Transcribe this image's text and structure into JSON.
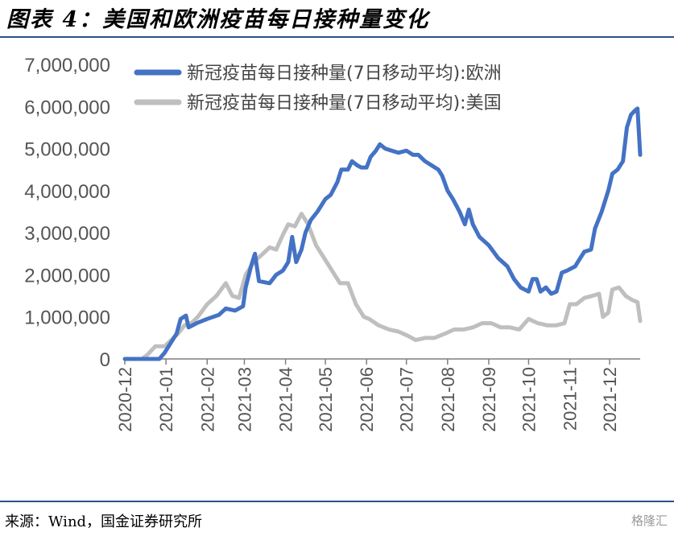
{
  "figure": {
    "title": "图表 4：美国和欧洲疫苗每日接种量变化",
    "source": "来源：Wind，国金证券研究所",
    "watermark": "格隆汇"
  },
  "chart_data": {
    "type": "line",
    "title": "",
    "xlabel": "",
    "ylabel": "",
    "ylim": [
      0,
      7000000
    ],
    "yticks": [
      0,
      1000000,
      2000000,
      3000000,
      4000000,
      5000000,
      6000000,
      7000000
    ],
    "ytick_labels": [
      "0",
      "1,000,000",
      "2,000,000",
      "3,000,000",
      "4,000,000",
      "5,000,000",
      "6,000,000",
      "7,000,000"
    ],
    "xticks": [
      "2020-12-01",
      "2021-01-01",
      "2021-02-01",
      "2021-03-01",
      "2021-04-01",
      "2021-05-01",
      "2021-06-01",
      "2021-07-01",
      "2021-08-01",
      "2021-09-01",
      "2021-10-01",
      "2021-11-01",
      "2021-12-01"
    ],
    "xtick_labels": [
      "2020-12",
      "2021-01",
      "2021-02",
      "2021-03",
      "2021-04",
      "2021-05",
      "2021-06",
      "2021-07",
      "2021-08",
      "2021-09",
      "2021-10",
      "2021-11",
      "2021-12"
    ],
    "xlim": [
      "2020-12-01",
      "2021-12-24"
    ],
    "grid": false,
    "legend_position": "top-left",
    "series": [
      {
        "name": "新冠疫苗每日接种量(7日移动平均):欧洲",
        "color": "#4472c4",
        "points": [
          [
            "2020-12-01",
            0
          ],
          [
            "2020-12-27",
            0
          ],
          [
            "2020-12-31",
            150000
          ],
          [
            "2021-01-05",
            400000
          ],
          [
            "2021-01-09",
            600000
          ],
          [
            "2021-01-12",
            950000
          ],
          [
            "2021-01-16",
            1030000
          ],
          [
            "2021-01-18",
            750000
          ],
          [
            "2021-01-24",
            850000
          ],
          [
            "2021-02-01",
            950000
          ],
          [
            "2021-02-10",
            1050000
          ],
          [
            "2021-02-15",
            1200000
          ],
          [
            "2021-02-22",
            1150000
          ],
          [
            "2021-02-28",
            1250000
          ],
          [
            "2021-03-02",
            1700000
          ],
          [
            "2021-03-06",
            2200000
          ],
          [
            "2021-03-09",
            2500000
          ],
          [
            "2021-03-12",
            1850000
          ],
          [
            "2021-03-20",
            1800000
          ],
          [
            "2021-03-25",
            2000000
          ],
          [
            "2021-03-30",
            2100000
          ],
          [
            "2021-04-03",
            2300000
          ],
          [
            "2021-04-06",
            2900000
          ],
          [
            "2021-04-09",
            2300000
          ],
          [
            "2021-04-13",
            2600000
          ],
          [
            "2021-04-16",
            3000000
          ],
          [
            "2021-04-20",
            3300000
          ],
          [
            "2021-04-25",
            3500000
          ],
          [
            "2021-05-01",
            3800000
          ],
          [
            "2021-05-05",
            3900000
          ],
          [
            "2021-05-10",
            4200000
          ],
          [
            "2021-05-13",
            4500000
          ],
          [
            "2021-05-18",
            4500000
          ],
          [
            "2021-05-21",
            4700000
          ],
          [
            "2021-05-25",
            4600000
          ],
          [
            "2021-05-28",
            4550000
          ],
          [
            "2021-06-01",
            4550000
          ],
          [
            "2021-06-04",
            4800000
          ],
          [
            "2021-06-08",
            4950000
          ],
          [
            "2021-06-11",
            5100000
          ],
          [
            "2021-06-15",
            5000000
          ],
          [
            "2021-06-20",
            4950000
          ],
          [
            "2021-06-25",
            4900000
          ],
          [
            "2021-07-01",
            4950000
          ],
          [
            "2021-07-06",
            4850000
          ],
          [
            "2021-07-10",
            4850000
          ],
          [
            "2021-07-15",
            4700000
          ],
          [
            "2021-07-20",
            4600000
          ],
          [
            "2021-07-25",
            4500000
          ],
          [
            "2021-07-28",
            4350000
          ],
          [
            "2021-08-01",
            4000000
          ],
          [
            "2021-08-05",
            3800000
          ],
          [
            "2021-08-10",
            3500000
          ],
          [
            "2021-08-14",
            3200000
          ],
          [
            "2021-08-17",
            3550000
          ],
          [
            "2021-08-20",
            3200000
          ],
          [
            "2021-08-25",
            2900000
          ],
          [
            "2021-09-01",
            2700000
          ],
          [
            "2021-09-08",
            2400000
          ],
          [
            "2021-09-15",
            2200000
          ],
          [
            "2021-09-20",
            1900000
          ],
          [
            "2021-09-25",
            1700000
          ],
          [
            "2021-10-01",
            1600000
          ],
          [
            "2021-10-04",
            1900000
          ],
          [
            "2021-10-07",
            1900000
          ],
          [
            "2021-10-10",
            1600000
          ],
          [
            "2021-10-14",
            1700000
          ],
          [
            "2021-10-18",
            1550000
          ],
          [
            "2021-10-22",
            1600000
          ],
          [
            "2021-10-26",
            2050000
          ],
          [
            "2021-10-30",
            2100000
          ],
          [
            "2021-11-05",
            2200000
          ],
          [
            "2021-11-08",
            2350000
          ],
          [
            "2021-11-12",
            2550000
          ],
          [
            "2021-11-17",
            2600000
          ],
          [
            "2021-11-20",
            3100000
          ],
          [
            "2021-11-25",
            3500000
          ],
          [
            "2021-11-30",
            4000000
          ],
          [
            "2021-12-03",
            4400000
          ],
          [
            "2021-12-07",
            4500000
          ],
          [
            "2021-12-11",
            4700000
          ],
          [
            "2021-12-14",
            5500000
          ],
          [
            "2021-12-17",
            5800000
          ],
          [
            "2021-12-20",
            5900000
          ],
          [
            "2021-12-22",
            5950000
          ],
          [
            "2021-12-24",
            4850000
          ]
        ]
      },
      {
        "name": "新冠疫苗每日接种量(7日移动平均):美国",
        "color": "#bfbfbf",
        "points": [
          [
            "2020-12-14",
            0
          ],
          [
            "2020-12-18",
            100000
          ],
          [
            "2020-12-24",
            300000
          ],
          [
            "2020-12-31",
            300000
          ],
          [
            "2021-01-05",
            450000
          ],
          [
            "2021-01-10",
            600000
          ],
          [
            "2021-01-15",
            800000
          ],
          [
            "2021-01-20",
            850000
          ],
          [
            "2021-01-25",
            1000000
          ],
          [
            "2021-02-01",
            1300000
          ],
          [
            "2021-02-08",
            1500000
          ],
          [
            "2021-02-15",
            1800000
          ],
          [
            "2021-02-20",
            1500000
          ],
          [
            "2021-02-25",
            1450000
          ],
          [
            "2021-03-02",
            2000000
          ],
          [
            "2021-03-08",
            2300000
          ],
          [
            "2021-03-15",
            2500000
          ],
          [
            "2021-03-20",
            2650000
          ],
          [
            "2021-03-25",
            2600000
          ],
          [
            "2021-03-30",
            2950000
          ],
          [
            "2021-04-03",
            3200000
          ],
          [
            "2021-04-08",
            3150000
          ],
          [
            "2021-04-13",
            3450000
          ],
          [
            "2021-04-18",
            3200000
          ],
          [
            "2021-04-24",
            2700000
          ],
          [
            "2021-04-30",
            2400000
          ],
          [
            "2021-05-06",
            2100000
          ],
          [
            "2021-05-12",
            1800000
          ],
          [
            "2021-05-18",
            1800000
          ],
          [
            "2021-05-24",
            1300000
          ],
          [
            "2021-05-30",
            1000000
          ],
          [
            "2021-06-03",
            950000
          ],
          [
            "2021-06-10",
            800000
          ],
          [
            "2021-06-18",
            700000
          ],
          [
            "2021-06-25",
            650000
          ],
          [
            "2021-07-02",
            550000
          ],
          [
            "2021-07-08",
            450000
          ],
          [
            "2021-07-15",
            500000
          ],
          [
            "2021-07-22",
            500000
          ],
          [
            "2021-07-30",
            600000
          ],
          [
            "2021-08-06",
            700000
          ],
          [
            "2021-08-13",
            700000
          ],
          [
            "2021-08-20",
            750000
          ],
          [
            "2021-08-27",
            850000
          ],
          [
            "2021-09-03",
            850000
          ],
          [
            "2021-09-10",
            750000
          ],
          [
            "2021-09-17",
            750000
          ],
          [
            "2021-09-24",
            700000
          ],
          [
            "2021-10-01",
            950000
          ],
          [
            "2021-10-08",
            850000
          ],
          [
            "2021-10-15",
            800000
          ],
          [
            "2021-10-22",
            800000
          ],
          [
            "2021-10-28",
            850000
          ],
          [
            "2021-11-01",
            1300000
          ],
          [
            "2021-11-06",
            1300000
          ],
          [
            "2021-11-12",
            1450000
          ],
          [
            "2021-11-18",
            1500000
          ],
          [
            "2021-11-23",
            1550000
          ],
          [
            "2021-11-26",
            1000000
          ],
          [
            "2021-11-30",
            1100000
          ],
          [
            "2021-12-03",
            1650000
          ],
          [
            "2021-12-08",
            1700000
          ],
          [
            "2021-12-13",
            1500000
          ],
          [
            "2021-12-18",
            1400000
          ],
          [
            "2021-12-22",
            1350000
          ],
          [
            "2021-12-24",
            900000
          ]
        ]
      }
    ]
  }
}
